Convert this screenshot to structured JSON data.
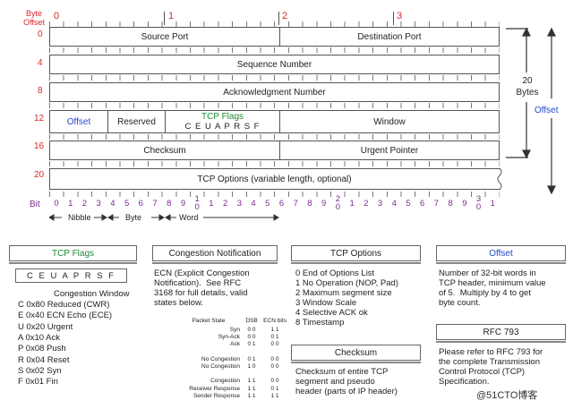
{
  "header": {
    "byte_offset_label": "Byte\nOffset",
    "byte_labels": [
      "0",
      "1",
      "2",
      "3"
    ],
    "row_offsets": [
      "0",
      "4",
      "8",
      "12",
      "16",
      "20"
    ],
    "bit_label": "Bit",
    "bit_numbers": [
      "0",
      "1",
      "2",
      "3",
      "4",
      "5",
      "6",
      "7",
      "8",
      "9",
      "1\n0",
      "1",
      "2",
      "3",
      "4",
      "5",
      "6",
      "7",
      "8",
      "9",
      "2\n0",
      "1",
      "2",
      "3",
      "4",
      "5",
      "6",
      "7",
      "8",
      "9",
      "3\n0",
      "1"
    ],
    "scale_labels": {
      "nibble": "Nibble",
      "byte": "Byte",
      "word": "Word"
    }
  },
  "rows": {
    "source_port": "Source Port",
    "destination_port": "Destination Port",
    "sequence_number": "Sequence Number",
    "ack_number": "Acknowledgment Number",
    "offset": "Offset",
    "reserved": "Reserved",
    "tcp_flags_label": "TCP Flags",
    "tcp_flags_letters": "C E U A P R S F",
    "window": "Window",
    "checksum": "Checksum",
    "urgent_pointer": "Urgent Pointer",
    "tcp_options": "TCP Options (variable length, optional)"
  },
  "right": {
    "size": "20\nBytes",
    "offset": "Offset"
  },
  "panels": {
    "tcp_flags": {
      "title": "TCP Flags",
      "letters": "C E U A P R S F",
      "subtitle": "Congestion Window",
      "items": [
        "C 0x80 Reduced (CWR)",
        "E 0x40 ECN Echo (ECE)",
        "U 0x20 Urgent",
        "A 0x10 Ack",
        "P 0x08 Push",
        "R 0x04 Reset",
        "S 0x02 Syn",
        "F 0x01 Fin"
      ]
    },
    "congestion": {
      "title": "Congestion Notification",
      "text": "ECN (Explicit Congestion\nNotification).  See RFC\n3168 for full details, valid\nstates below.",
      "table_headers": [
        "Packet State",
        "DSB",
        "ECN bits"
      ],
      "table_rows": [
        [
          "Syn",
          "0 0",
          "1 1"
        ],
        [
          "Syn-Ack",
          "0 0",
          "0 1"
        ],
        [
          "Ack",
          "0 1",
          "0 0"
        ],
        [
          "",
          "",
          ""
        ],
        [
          "No Congestion",
          "0 1",
          "0 0"
        ],
        [
          "No Congestion",
          "1 0",
          "0 0"
        ],
        [
          "",
          "",
          ""
        ],
        [
          "Congestion",
          "1 1",
          "0 0"
        ],
        [
          "Receiver Response",
          "1 1",
          "0 1"
        ],
        [
          "Sender Response",
          "1 1",
          "1 1"
        ]
      ]
    },
    "tcp_options": {
      "title": "TCP Options",
      "text": "0 End of Options List\n1 No Operation (NOP, Pad)\n2 Maximum segment size\n3 Window Scale\n4 Selective ACK ok\n8 Timestamp"
    },
    "checksum": {
      "title": "Checksum",
      "text": "Checksum of entire TCP\nsegment and pseudo\nheader (parts of IP header)"
    },
    "offset": {
      "title": "Offset",
      "text": "Number of 32-bit words in\nTCP header, minimum value\nof 5.  Multiply by 4 to get\nbyte count."
    },
    "rfc": {
      "title": "RFC 793",
      "text": "Please refer to RFC 793 for\nthe complete Transmission\nControl Protocol (TCP)\nSpecification."
    }
  },
  "watermark": "@51CTO博客"
}
